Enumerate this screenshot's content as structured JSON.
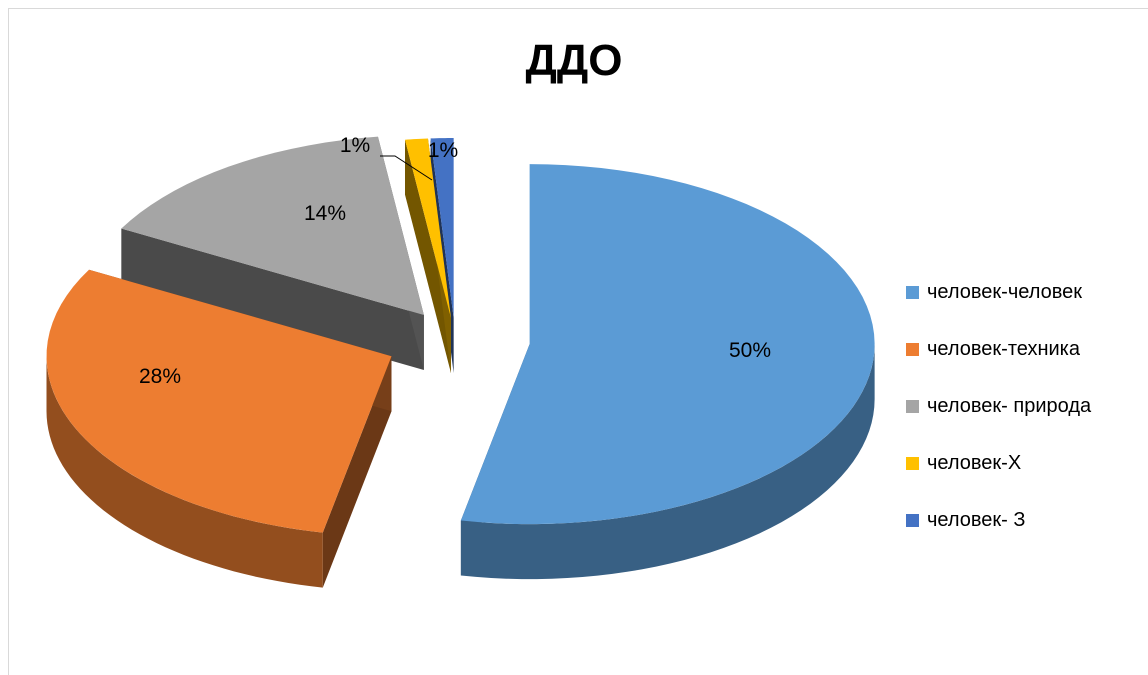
{
  "chart_data": {
    "type": "pie",
    "title": "ДДО",
    "categories": [
      "человек-человек",
      "человек-техника",
      "человек- природа",
      "человек-Х",
      "человек- З"
    ],
    "values": [
      50,
      28,
      14,
      1,
      1
    ],
    "data_labels": [
      "50%",
      "28%",
      "14%",
      "1%",
      "1%"
    ],
    "colors": [
      "#5b9bd5",
      "#ed7d31",
      "#a5a5a5",
      "#ffc000",
      "#4472c4"
    ],
    "style": "3d-exploded",
    "legend": "right"
  }
}
